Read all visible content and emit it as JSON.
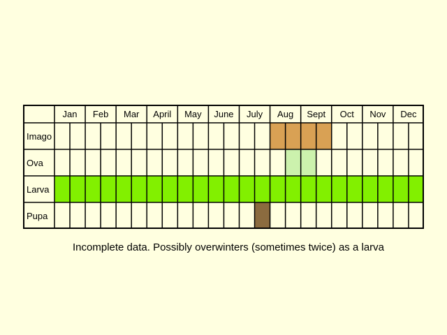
{
  "chart_data": {
    "type": "table",
    "months": [
      "Jan",
      "Feb",
      "Mar",
      "April",
      "May",
      "June",
      "July",
      "Aug",
      "Sept",
      "Oct",
      "Nov",
      "Dec"
    ],
    "stages": [
      {
        "label": "Imago",
        "color": "#d9a154",
        "fill": [
          false,
          false,
          false,
          false,
          false,
          false,
          false,
          false,
          false,
          false,
          false,
          false,
          false,
          false,
          true,
          true,
          true,
          true,
          false,
          false,
          false,
          false,
          false,
          false
        ]
      },
      {
        "label": "Ova",
        "color": "#ccf2ad",
        "fill": [
          false,
          false,
          false,
          false,
          false,
          false,
          false,
          false,
          false,
          false,
          false,
          false,
          false,
          false,
          false,
          true,
          true,
          false,
          false,
          false,
          false,
          false,
          false,
          false
        ]
      },
      {
        "label": "Larva",
        "color": "#82f000",
        "fill": [
          true,
          true,
          true,
          true,
          true,
          true,
          true,
          true,
          true,
          true,
          true,
          true,
          true,
          true,
          true,
          true,
          true,
          true,
          true,
          true,
          true,
          true,
          true,
          true
        ]
      },
      {
        "label": "Pupa",
        "color": "#8b6b3f",
        "fill": [
          false,
          false,
          false,
          false,
          false,
          false,
          false,
          false,
          false,
          false,
          false,
          false,
          false,
          true,
          false,
          false,
          false,
          false,
          false,
          false,
          false,
          false,
          false,
          false
        ]
      }
    ],
    "half_month_columns": true
  },
  "caption": "Incomplete data. Possibly overwinters (sometimes twice) as a larva"
}
